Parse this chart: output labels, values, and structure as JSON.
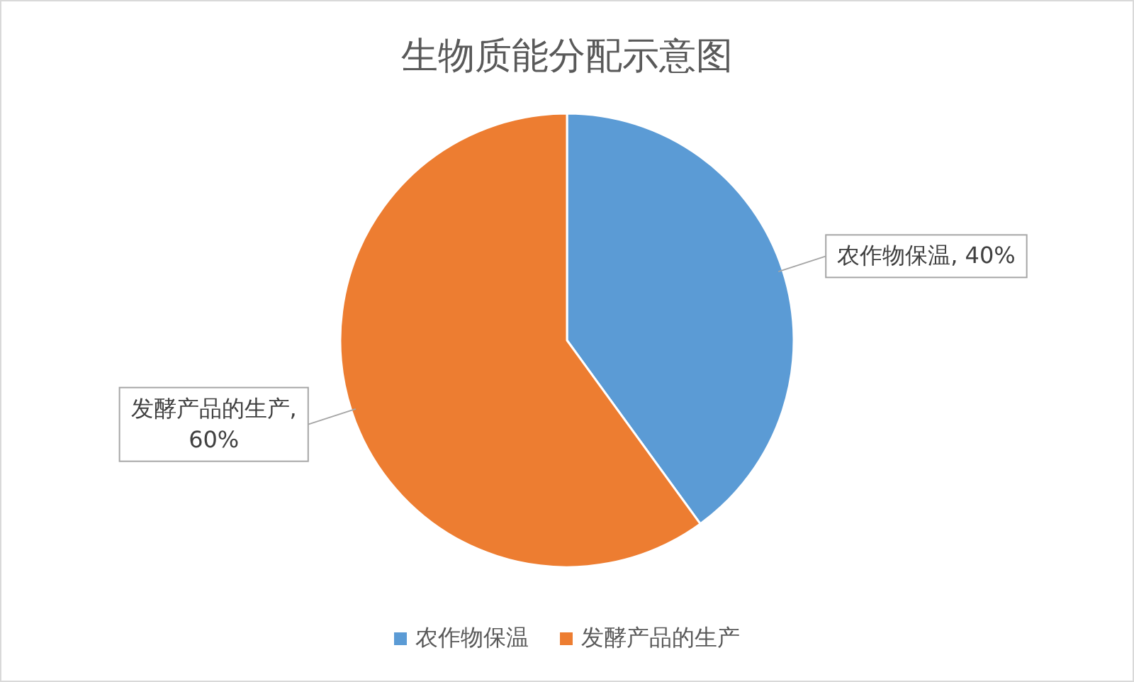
{
  "chart_data": {
    "type": "pie",
    "title": "生物质能分配示意图",
    "categories": [
      "农作物保温",
      "发酵产品的生产"
    ],
    "values": [
      40,
      60
    ],
    "colors": [
      "#5b9bd5",
      "#ed7d31"
    ],
    "value_labels": [
      "农作物保温, 40%",
      "发酵产品的生产, 60%"
    ],
    "legend": "bottom"
  }
}
